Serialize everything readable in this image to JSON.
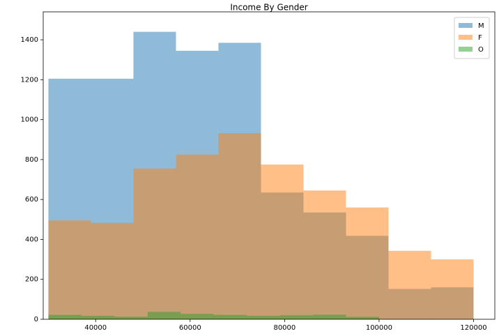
{
  "chart_data": {
    "type": "histogram",
    "title": "Income By Gender",
    "series": [
      {
        "name": "M",
        "color": "#1f77b4",
        "bins": [
          30000,
          39000,
          48000,
          57000,
          66000,
          75000,
          84000,
          93000,
          102000,
          111000,
          120000
        ],
        "values": [
          1205,
          1205,
          1440,
          1345,
          1385,
          635,
          535,
          418,
          152,
          160
        ]
      },
      {
        "name": "F",
        "color": "#ff7f0e",
        "bins": [
          30000,
          39000,
          48000,
          57000,
          66000,
          75000,
          84000,
          93000,
          102000,
          111000,
          120000
        ],
        "values": [
          495,
          483,
          755,
          825,
          932,
          775,
          645,
          560,
          343,
          300
        ]
      },
      {
        "name": "O",
        "color": "#2ca02c",
        "bins": [
          30000,
          37000,
          44000,
          51000,
          58000,
          65000,
          72000,
          79000,
          86000,
          93000,
          100000
        ],
        "values": [
          22,
          17,
          13,
          37,
          27,
          22,
          17,
          20,
          23,
          12
        ]
      }
    ],
    "alpha": 0.5,
    "xlim": [
      28900,
      124500
    ],
    "xticks": [
      40000,
      60000,
      80000,
      100000,
      120000
    ],
    "ylim": [
      0,
      1540
    ],
    "yticks": [
      0,
      200,
      400,
      600,
      800,
      1000,
      1200,
      1400
    ],
    "grid": false,
    "legend": "upper right"
  }
}
